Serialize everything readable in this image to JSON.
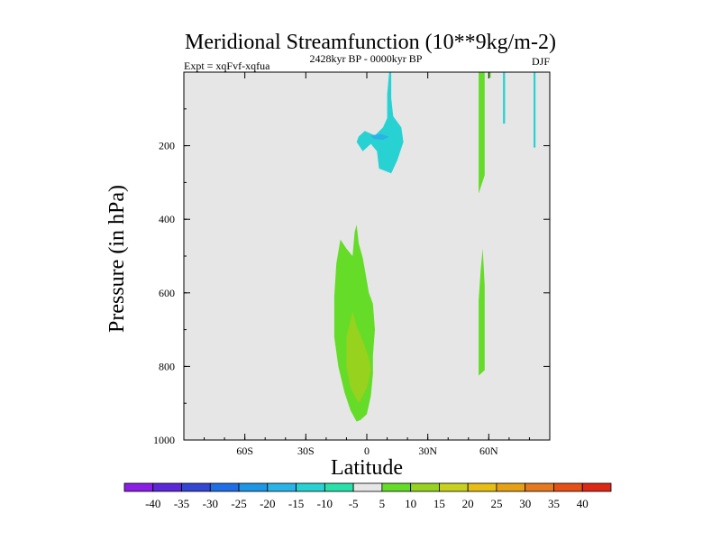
{
  "chart_data": {
    "type": "contour",
    "title": "Meridional Streamfunction (10**9kg/m-2)",
    "left_string": "Expt = xqFvf-xqfua",
    "center_string": "2428kyr BP - 0000kyr BP",
    "right_string": "DJF",
    "xlabel": "Latitude",
    "ylabel": "Pressure (in hPa)",
    "xlim": [
      -90,
      90
    ],
    "ylim": [
      1000,
      0
    ],
    "x_ticks": [
      {
        "value": -60,
        "label": "60S"
      },
      {
        "value": -30,
        "label": "30S"
      },
      {
        "value": 0,
        "label": "0"
      },
      {
        "value": 30,
        "label": "30N"
      },
      {
        "value": 60,
        "label": "60N"
      }
    ],
    "y_ticks": [
      {
        "value": 200,
        "label": "200"
      },
      {
        "value": 400,
        "label": "400"
      },
      {
        "value": 600,
        "label": "600"
      },
      {
        "value": 800,
        "label": "800"
      },
      {
        "value": 1000,
        "label": "1000"
      }
    ],
    "background_color": "#e6e6e6",
    "colorbar": {
      "levels": [
        "-40",
        "-35",
        "-30",
        "-25",
        "-20",
        "-15",
        "-10",
        "-5",
        "5",
        "10",
        "15",
        "20",
        "25",
        "30",
        "35",
        "40"
      ],
      "colors": [
        "#8a1ee6",
        "#5a28d8",
        "#3246d2",
        "#1e6ee6",
        "#1e96e6",
        "#28b4e6",
        "#28d2d2",
        "#28e0aa",
        "#e6e6e6",
        "#64dc28",
        "#96d21e",
        "#c8d21e",
        "#e6be14",
        "#e6a014",
        "#e6781e",
        "#e65014",
        "#dc2814"
      ]
    },
    "regions": [
      {
        "name": "upper-negative-cell",
        "level": "-10",
        "points": [
          [
            -4,
            175
          ],
          [
            -1,
            160
          ],
          [
            4,
            172
          ],
          [
            8,
            150
          ],
          [
            10,
            125
          ],
          [
            10,
            60
          ],
          [
            11,
            0
          ],
          [
            12,
            0
          ],
          [
            12,
            70
          ],
          [
            13,
            120
          ],
          [
            17,
            150
          ],
          [
            18,
            190
          ],
          [
            15,
            240
          ],
          [
            12,
            275
          ],
          [
            6,
            262
          ],
          [
            5,
            215
          ],
          [
            2,
            195
          ],
          [
            -2,
            215
          ],
          [
            -5,
            190
          ]
        ]
      },
      {
        "name": "upper-negative-core",
        "level": "-15",
        "points": [
          [
            2,
            172
          ],
          [
            7,
            168
          ],
          [
            11,
            176
          ],
          [
            8,
            184
          ],
          [
            3,
            181
          ]
        ]
      },
      {
        "name": "lower-positive-cell",
        "level": "5",
        "points": [
          [
            -15,
            520
          ],
          [
            -13,
            455
          ],
          [
            -10,
            480
          ],
          [
            -7,
            500
          ],
          [
            -6,
            435
          ],
          [
            -5,
            415
          ],
          [
            -4,
            465
          ],
          [
            -2,
            505
          ],
          [
            -1,
            535
          ],
          [
            1,
            600
          ],
          [
            3,
            630
          ],
          [
            4,
            700
          ],
          [
            3,
            770
          ],
          [
            3,
            820
          ],
          [
            2,
            880
          ],
          [
            0,
            930
          ],
          [
            -3,
            945
          ],
          [
            -5,
            950
          ],
          [
            -8,
            920
          ],
          [
            -11,
            870
          ],
          [
            -14,
            800
          ],
          [
            -16,
            720
          ],
          [
            -16,
            610
          ]
        ]
      },
      {
        "name": "lower-positive-core",
        "level": "10",
        "points": [
          [
            -7,
            650
          ],
          [
            -5,
            690
          ],
          [
            -2,
            730
          ],
          [
            1,
            775
          ],
          [
            2,
            810
          ],
          [
            0,
            860
          ],
          [
            -4,
            900
          ],
          [
            -8,
            860
          ],
          [
            -10,
            800
          ],
          [
            -10,
            720
          ]
        ]
      },
      {
        "name": "upper-north-strip",
        "level": "5",
        "points": [
          [
            55,
            0
          ],
          [
            58,
            0
          ],
          [
            58,
            280
          ],
          [
            55,
            330
          ]
        ]
      },
      {
        "name": "lower-north-strip",
        "level": "5",
        "points": [
          [
            55,
            620
          ],
          [
            56,
            540
          ],
          [
            57,
            480
          ],
          [
            58,
            580
          ],
          [
            58,
            810
          ],
          [
            55,
            825
          ]
        ]
      },
      {
        "name": "north-thin-streak-1",
        "level": "5",
        "points": [
          [
            60,
            0
          ],
          [
            61,
            0
          ],
          [
            61,
            15
          ],
          [
            60,
            15
          ]
        ]
      },
      {
        "name": "north-thin-streak-2",
        "level": "-10",
        "points": [
          [
            67,
            0
          ],
          [
            68,
            0
          ],
          [
            68,
            140
          ],
          [
            67,
            140
          ]
        ]
      },
      {
        "name": "north-thin-streak-3",
        "level": "-10",
        "points": [
          [
            82,
            0
          ],
          [
            83,
            0
          ],
          [
            83,
            205
          ],
          [
            82,
            205
          ]
        ]
      }
    ]
  }
}
